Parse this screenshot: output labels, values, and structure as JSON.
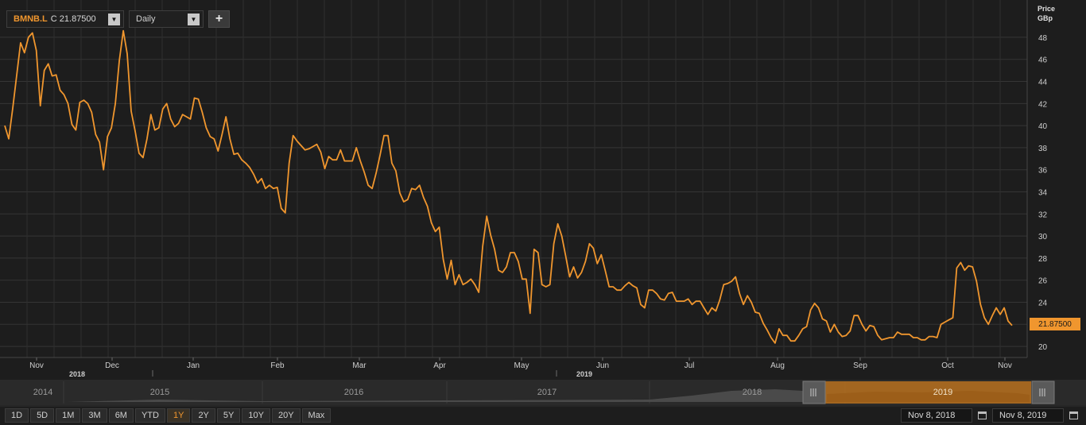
{
  "header": {
    "symbol": "BMNB.L",
    "close_label": "C 21.87500",
    "frequency": "Daily",
    "add_label": "+",
    "unit_line1": "Price",
    "unit_line2": "GBp",
    "last_price_tag": "21.87500"
  },
  "chart_data": {
    "type": "line",
    "y_ticks": [
      "20",
      "22",
      "24",
      "26",
      "28",
      "30",
      "32",
      "34",
      "36",
      "38",
      "40",
      "42",
      "44",
      "46",
      "48"
    ],
    "ylim": [
      19,
      50.8
    ],
    "month_labels": [
      "Nov",
      "Dec",
      "Jan",
      "Feb",
      "Mar",
      "Apr",
      "May",
      "Jun",
      "Jul",
      "Aug",
      "Sep",
      "Oct",
      "Nov"
    ],
    "year_labels": [
      "2018",
      "2019"
    ],
    "grid": true,
    "series": [
      {
        "color": "#f0962e",
        "values": [
          40,
          38.8,
          41.5,
          44.5,
          47.5,
          46.6,
          48,
          48.4,
          46.8,
          41.8,
          45,
          45.6,
          44.5,
          44.6,
          43.2,
          42.8,
          42,
          40.1,
          39.6,
          42.1,
          42.3,
          42,
          41.2,
          39.2,
          38.5,
          36,
          39,
          39.8,
          42,
          45.9,
          48.6,
          46.5,
          41.3,
          39.5,
          37.5,
          37.1,
          38.8,
          41,
          39.6,
          39.8,
          41.5,
          42,
          40.6,
          39.9,
          40.2,
          41,
          40.8,
          40.6,
          42.5,
          42.4,
          41.2,
          39.8,
          39,
          38.8,
          37.7,
          39.2,
          40.8,
          38.8,
          37.4,
          37.5,
          36.9,
          36.6,
          36.2,
          35.6,
          34.8,
          35.2,
          34.3,
          34.6,
          34.3,
          34.4,
          32.5,
          32.1,
          36.6,
          39.1,
          38.6,
          38.2,
          37.8,
          37.9,
          38.1,
          38.3,
          37.6,
          36.1,
          37.2,
          36.9,
          36.9,
          37.8,
          36.8,
          36.8,
          36.8,
          38,
          36.8,
          35.8,
          34.6,
          34.3,
          35.7,
          37.3,
          39.1,
          39.1,
          36.6,
          35.9,
          33.9,
          33.1,
          33.3,
          34.3,
          34.2,
          34.6,
          33.5,
          32.7,
          31.2,
          30.4,
          30.8,
          27.9,
          26.1,
          27.8,
          25.6,
          26.5,
          25.6,
          25.8,
          26.1,
          25.6,
          24.9,
          29.1,
          31.8,
          30.1,
          28.8,
          26.9,
          26.7,
          27.2,
          28.5,
          28.5,
          27.7,
          26.1,
          26.1,
          23,
          28.8,
          28.5,
          25.6,
          25.4,
          25.6,
          29.3,
          31.1,
          30,
          28.2,
          26.3,
          27.2,
          26.2,
          26.7,
          27.7,
          29.3,
          28.9,
          27.5,
          28.3,
          26.9,
          25.4,
          25.4,
          25.1,
          25.1,
          25.5,
          25.8,
          25.5,
          25.3,
          23.8,
          23.5,
          25.1,
          25.1,
          24.8,
          24.3,
          24.2,
          24.8,
          24.9,
          24.1,
          24.1,
          24.1,
          24.3,
          23.8,
          24.1,
          24.1,
          23.5,
          22.9,
          23.5,
          23.2,
          24.2,
          25.6,
          25.7,
          25.9,
          26.3,
          24.8,
          23.8,
          24.6,
          24,
          23.1,
          23,
          22.1,
          21.5,
          20.8,
          20.3,
          21.6,
          21,
          21,
          20.5,
          20.5,
          21,
          21.6,
          21.8,
          23.3,
          23.9,
          23.5,
          22.5,
          22.3,
          21.3,
          22,
          21.3,
          20.9,
          21,
          21.4,
          22.8,
          22.8,
          22,
          21.4,
          21.9,
          21.8,
          21,
          20.6,
          20.7,
          20.8,
          20.8,
          21.3,
          21.1,
          21.1,
          21.1,
          20.8,
          20.8,
          20.6,
          20.6,
          20.9,
          20.9,
          20.8,
          22,
          22.2,
          22.4,
          22.6,
          27.1,
          27.6,
          26.9,
          27.3,
          27.2,
          25.9,
          23.8,
          22.6,
          22,
          22.8,
          23.5,
          22.9,
          23.5,
          22.3,
          21.9
        ]
      }
    ]
  },
  "navigator": {
    "year_labels": [
      "2014",
      "2015",
      "2016",
      "2017",
      "2018",
      "2019"
    ],
    "window_fill_color": "#b8711f"
  },
  "range_buttons": [
    "1D",
    "5D",
    "1M",
    "3M",
    "6M",
    "YTD",
    "1Y",
    "2Y",
    "5Y",
    "10Y",
    "20Y",
    "Max"
  ],
  "active_range": "1Y",
  "dates": {
    "start": "Nov 8, 2018",
    "end": "Nov 8, 2019"
  }
}
